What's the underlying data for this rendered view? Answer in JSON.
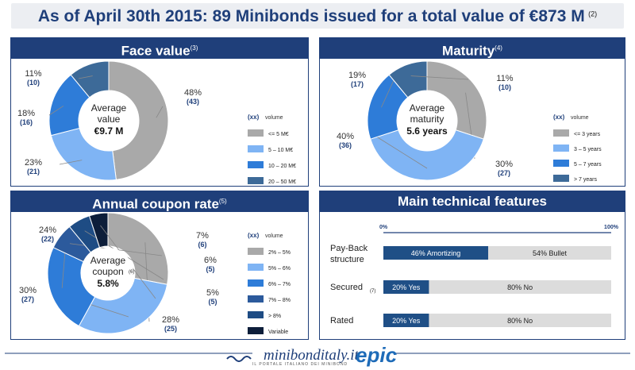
{
  "headline": {
    "text": "As of April 30th 2015: 89 Minibonds issued for a total value of €873 M",
    "note": "(2)"
  },
  "colors": {
    "navy": "#1f3f7a",
    "grey": "#a9a9a9",
    "light_blue": "#7fb4f4",
    "mid_blue": "#2e7cd8",
    "steel_blue": "#3d6a98",
    "dark_blue": "#1e4c84",
    "dark_navy": "#0d1e3a",
    "gauge_bg": "#dcdcdc"
  },
  "chart_data": [
    {
      "type": "pie",
      "title": "Face value",
      "note": "(3)",
      "center": {
        "l1": "Average",
        "l2": "value",
        "value": "€9.7 M"
      },
      "legend_title": "(xx)",
      "legend_suffix": "volume",
      "slices": [
        {
          "label": "<= 5 M€",
          "pct": "48%",
          "count": "(43)",
          "value": 48,
          "color": "#a9a9a9"
        },
        {
          "label": "5 – 10 M€",
          "pct": "23%",
          "count": "(21)",
          "value": 23,
          "color": "#7fb4f4"
        },
        {
          "label": "10 – 20 M€",
          "pct": "18%",
          "count": "(16)",
          "value": 18,
          "color": "#2e7cd8"
        },
        {
          "label": "20 – 50 M€",
          "pct": "11%",
          "count": "(10)",
          "value": 11,
          "color": "#3d6a98"
        }
      ]
    },
    {
      "type": "pie",
      "title": "Maturity",
      "note": "(4)",
      "center": {
        "l1": "Average",
        "l2": "maturity",
        "value": "5.6 years"
      },
      "legend_title": "(xx)",
      "legend_suffix": "volume",
      "slices": [
        {
          "label": "<= 3 years",
          "pct": "30%",
          "count": "(27)",
          "value": 30,
          "color": "#a9a9a9"
        },
        {
          "label": "3 – 5 years",
          "pct": "40%",
          "count": "(36)",
          "value": 40,
          "color": "#7fb4f4"
        },
        {
          "label": "5 – 7 years",
          "pct": "19%",
          "count": "(17)",
          "value": 19,
          "color": "#2e7cd8"
        },
        {
          "label": "> 7 years",
          "pct": "11%",
          "count": "(10)",
          "value": 11,
          "color": "#3d6a98"
        }
      ]
    },
    {
      "type": "pie",
      "title": "Annual coupon rate",
      "note": "(5)",
      "center": {
        "l1": "Average",
        "l2": "coupon",
        "l2_note": "(6)",
        "value": "5.8%"
      },
      "legend_title": "(xx)",
      "legend_suffix": "volume",
      "slices": [
        {
          "label": "2% – 5%",
          "pct": "28%",
          "count": "(25)",
          "value": 28,
          "color": "#a9a9a9"
        },
        {
          "label": "5% – 6%",
          "pct": "30%",
          "count": "(27)",
          "value": 30,
          "color": "#7fb4f4"
        },
        {
          "label": "6% – 7%",
          "pct": "24%",
          "count": "(22)",
          "value": 24,
          "color": "#2e7cd8"
        },
        {
          "label": "7% – 8%",
          "pct": "7%",
          "count": "(6)",
          "value": 7,
          "color": "#2c5a9c"
        },
        {
          "label": "> 8%",
          "pct": "6%",
          "count": "(5)",
          "value": 6,
          "color": "#1e4c84"
        },
        {
          "label": "Variable",
          "pct": "5%",
          "count": "(5)",
          "value": 5,
          "color": "#0d1e3a"
        }
      ]
    },
    {
      "type": "bar",
      "title": "Main technical features",
      "axis": {
        "min_label": "0%",
        "max_label": "100%"
      },
      "rows": [
        {
          "label": "Pay-Back structure",
          "label_l1": "Pay-Back",
          "label_l2": "structure",
          "dark_value": 46,
          "dark_text": "46% Amortizing",
          "light_text": "54% Bullet"
        },
        {
          "label": "Secured",
          "note": "(7)",
          "dark_value": 20,
          "dark_text": "20% Yes",
          "light_text": "80% No"
        },
        {
          "label": "Rated",
          "dark_value": 20,
          "dark_text": "20% Yes",
          "light_text": "80% No"
        }
      ]
    }
  ],
  "footer": {
    "brand": "minibonditaly.it",
    "tagline": "IL PORTALE ITALIANO DEI MINIBOND",
    "partner": "epic"
  }
}
